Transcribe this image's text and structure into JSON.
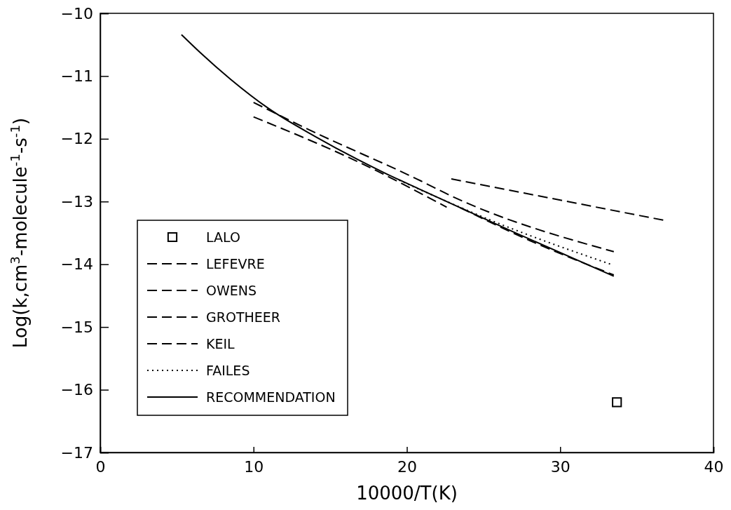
{
  "chart_data": {
    "type": "line",
    "xlabel": "10000/T(K)",
    "ylabel": "Log(k,cm$^{3}$-molecule$^{-1}$-s$^{-1}$)",
    "xlim": [
      0,
      40
    ],
    "xticks": [
      0,
      10,
      20,
      30,
      40
    ],
    "ylim": [
      -17,
      -10
    ],
    "yticks": [
      {
        "value": -17,
        "label": "−17"
      },
      {
        "value": -16,
        "label": "−16"
      },
      {
        "value": -15,
        "label": "−15"
      },
      {
        "value": -14,
        "label": "−14"
      },
      {
        "value": -13,
        "label": "−13"
      },
      {
        "value": -12,
        "label": "−12"
      },
      {
        "value": -11,
        "label": "−11"
      },
      {
        "value": -10,
        "label": "−10"
      }
    ],
    "grid": false,
    "legend": "bottom left",
    "series": [
      {
        "name": "LALO",
        "type": "scatter",
        "marker": "square",
        "color": "#000000",
        "x": [
          33.7
        ],
        "values": [
          -16.2
        ]
      },
      {
        "name": "LEFEVRE",
        "line_style": "dashed",
        "color": "#000000",
        "x": [
          22.9,
          36.8
        ],
        "values": [
          -12.64,
          -13.3
        ]
      },
      {
        "name": "OWENS",
        "line_style": "dashed",
        "color": "#000000",
        "x": [
          23.5,
          28,
          33.5
        ],
        "values": [
          -13.1,
          -13.62,
          -14.17
        ]
      },
      {
        "name": "GROTHEER",
        "line_style": "dashed",
        "color": "#000000",
        "x": [
          10,
          13.4,
          20.9,
          22.8,
          33.5
        ],
        "values": [
          -11.42,
          -11.83,
          -12.67,
          -12.9,
          -13.8
        ]
      },
      {
        "name": "KEIL",
        "line_style": "dashed",
        "color": "#000000",
        "x": [
          10,
          17.1,
          22.6
        ],
        "values": [
          -11.65,
          -12.4,
          -13.09
        ]
      },
      {
        "name": "FAILES",
        "line_style": "dotted",
        "color": "#000000",
        "x": [
          19.5,
          26,
          33.3
        ],
        "values": [
          -12.66,
          -13.35,
          -14.0
        ]
      },
      {
        "name": "RECOMMENDATION",
        "line_style": "solid",
        "color": "#000000",
        "x": [
          5.3,
          6.5,
          8.5,
          11,
          14,
          18.6,
          20.9,
          27,
          33.5
        ],
        "values": [
          -10.34,
          -10.62,
          -11.05,
          -11.52,
          -11.96,
          -12.55,
          -12.81,
          -13.49,
          -14.19
        ]
      }
    ]
  }
}
